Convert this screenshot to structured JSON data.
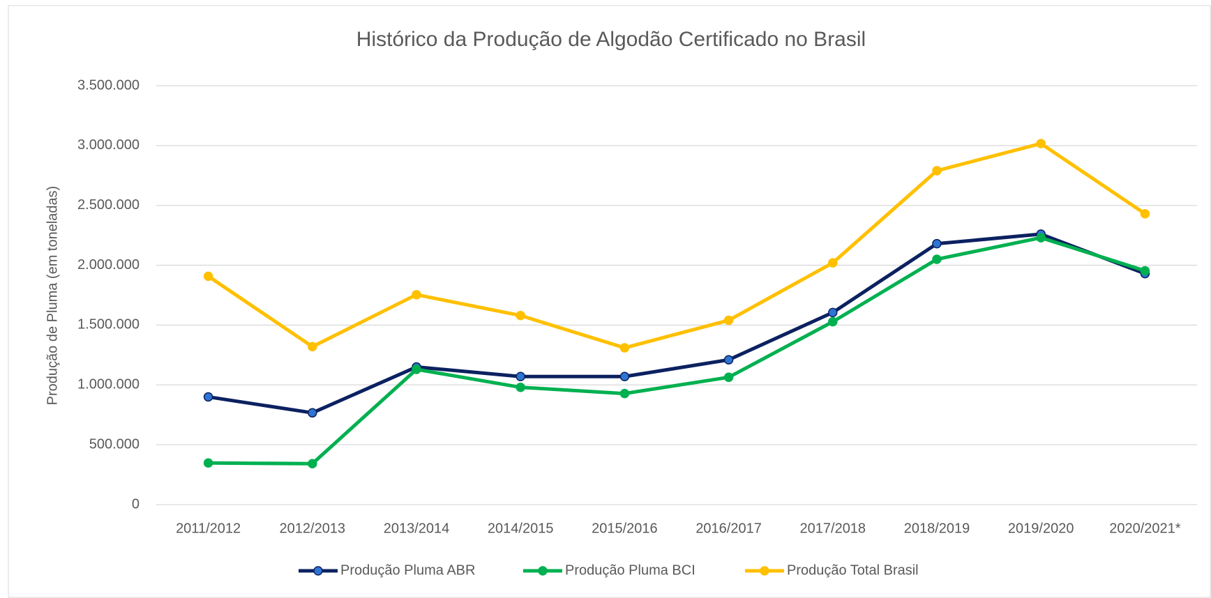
{
  "chart_data": {
    "type": "line",
    "title": "Histórico da Produção de Algodão Certificado no Brasil",
    "y_label": "Produção de Pluma (em toneladas)",
    "categories": [
      "2011/2012",
      "2012/2013",
      "2013/2014",
      "2014/2015",
      "2015/2016",
      "2016/2017",
      "2017/2018",
      "2018/2019",
      "2019/2020",
      "2020/2021*"
    ],
    "series": [
      {
        "name": "Produção Pluma ABR",
        "color": "#0b2160",
        "marker_fill": "#2e75d2",
        "values": [
          900000,
          767000,
          1150000,
          1070000,
          1070000,
          1210000,
          1605000,
          2180000,
          2260000,
          1930000
        ]
      },
      {
        "name": "Produção Pluma BCI",
        "color": "#00b050",
        "marker_fill": "#00b050",
        "values": [
          348000,
          342000,
          1130000,
          980000,
          928000,
          1064000,
          1528000,
          2050000,
          2230000,
          1954000
        ]
      },
      {
        "name": "Produção Total Brasil",
        "color": "#ffc000",
        "marker_fill": "#ffc000",
        "values": [
          1908000,
          1320000,
          1754000,
          1580000,
          1310000,
          1540000,
          2020000,
          2790000,
          3017000,
          2430000
        ]
      }
    ],
    "ylim": [
      0,
      3500000
    ],
    "yticks": [
      0,
      {
        "value": 500000,
        "label": "500.000"
      },
      {
        "value": 1000000,
        "label": "1.000.000"
      },
      {
        "value": 1500000,
        "label": "1.500.000"
      },
      {
        "value": 2000000,
        "label": "2.000.000"
      },
      {
        "value": 2500000,
        "label": "2.500.000"
      },
      {
        "value": 3000000,
        "label": "3.000.000"
      },
      {
        "value": 3500000,
        "label": "3.500.000"
      }
    ],
    "grid": true,
    "legend": "bottom"
  }
}
